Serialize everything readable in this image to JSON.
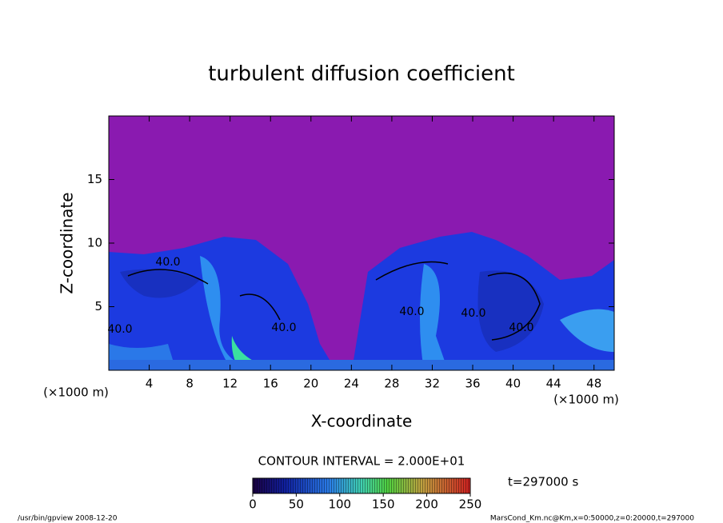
{
  "chart_data": {
    "type": "contour",
    "title": "turbulent diffusion coefficient",
    "xlabel": "X-coordinate",
    "ylabel": "Z-coordinate",
    "x_unit": "(×1000 m)",
    "xlim": [
      0,
      50
    ],
    "xticks": [
      4,
      8,
      12,
      16,
      20,
      24,
      28,
      32,
      36,
      40,
      44,
      48
    ],
    "ylim": [
      0,
      20
    ],
    "yticks": [
      5,
      10,
      15
    ],
    "contour_labels": [
      "40.0",
      "40.0",
      "40.0",
      "40.0",
      "40.0",
      "40.0"
    ],
    "contour_interval": "CONTOUR INTERVAL = 2.000E+01",
    "clim": [
      0,
      250
    ],
    "cticks": [
      0,
      50,
      100,
      150,
      200,
      250
    ],
    "time_label": "t=297000 s",
    "footer_left": "/usr/bin/gpview  2008-12-20",
    "footer_right": "MarsCond_Km.nc@Km,x=0:50000,z=0:20000,t=297000"
  }
}
